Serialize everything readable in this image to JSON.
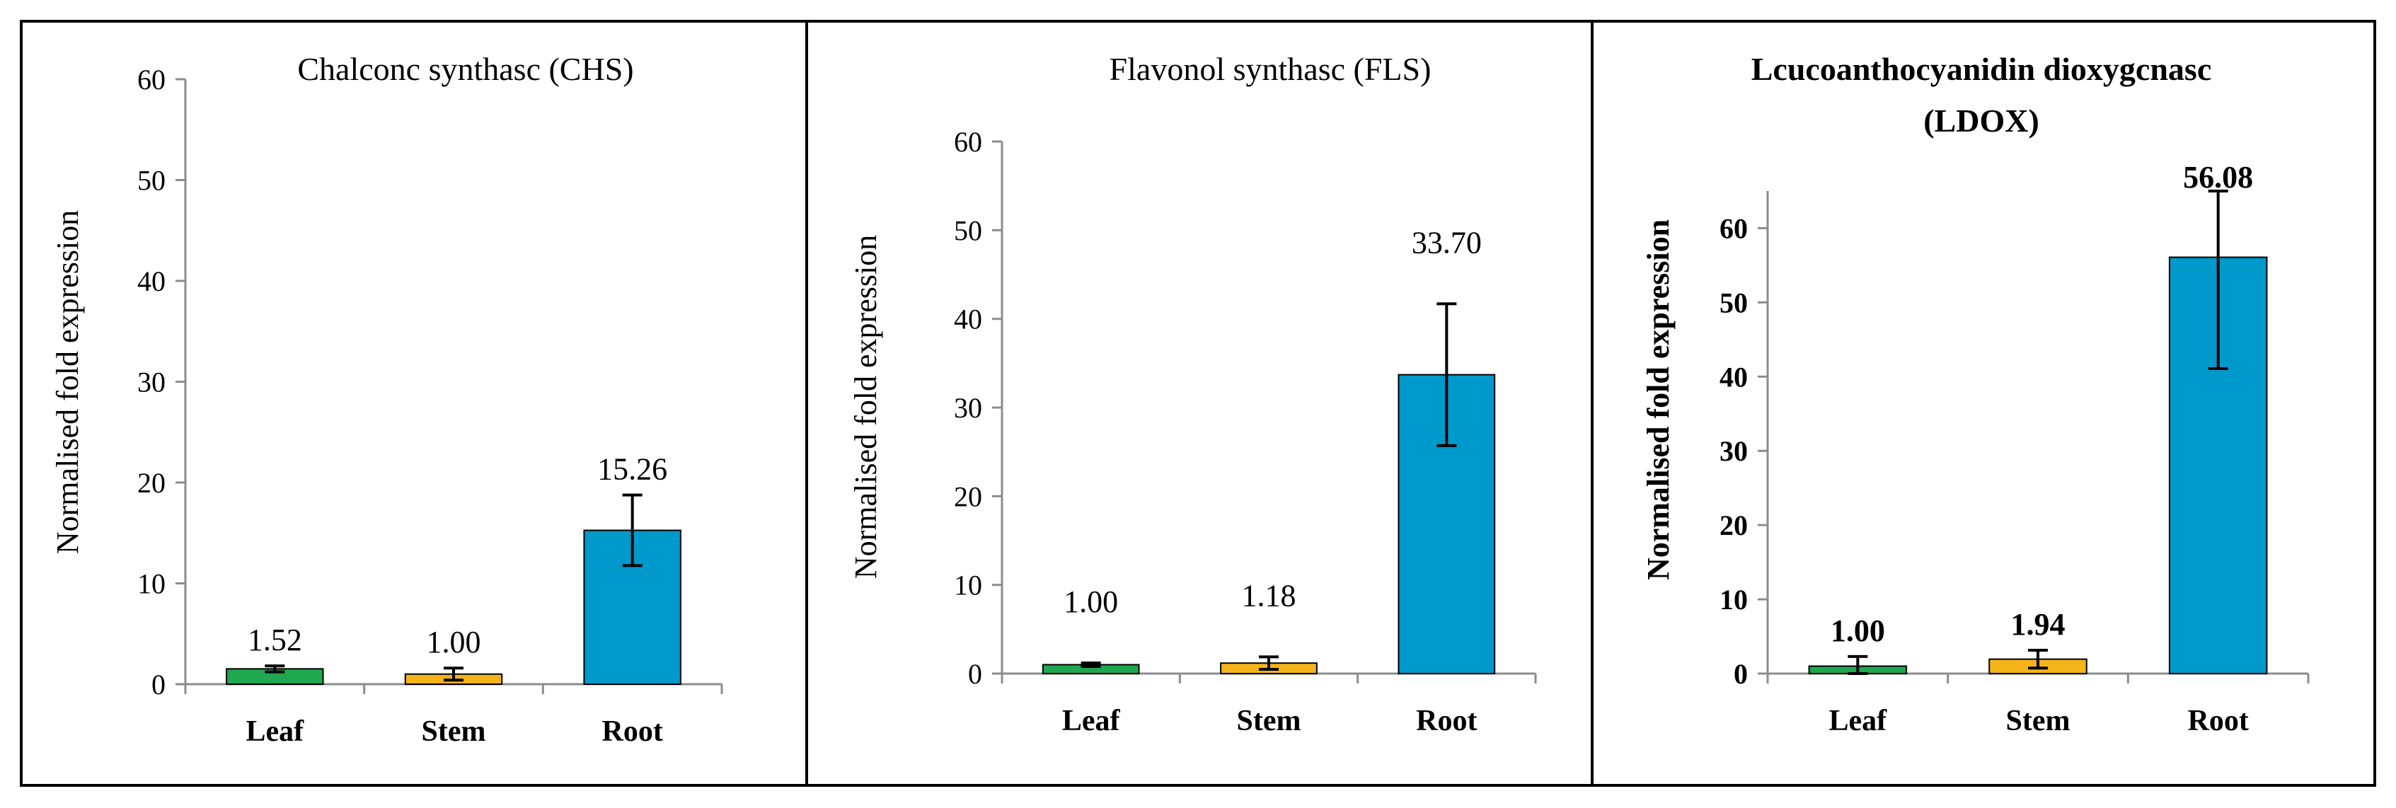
{
  "colors": {
    "leaf": "#1fa84f",
    "stem": "#f4b41a",
    "root": "#0099cc",
    "border": "#000000",
    "axis": "#8c8c8c"
  },
  "chart_data": [
    {
      "type": "bar",
      "title": "Chalconc synthasc (CHS)",
      "ylabel": "Normalised fold expression",
      "xlabel": "",
      "categories": [
        "Leaf",
        "Stem",
        "Root"
      ],
      "values": [
        1.52,
        1.0,
        15.26
      ],
      "value_labels": [
        "1.52",
        "1.00",
        "15.26"
      ],
      "error": [
        0.3,
        0.6,
        3.5
      ],
      "ylim": [
        0,
        60
      ],
      "yticks": [
        0,
        10,
        20,
        30,
        40,
        50,
        60
      ],
      "grid": false,
      "legend": "none"
    },
    {
      "type": "bar",
      "title": "Flavonol synthasc (FLS)",
      "ylabel": "Normalised fold expression",
      "xlabel": "",
      "categories": [
        "Leaf",
        "Stem",
        "Root"
      ],
      "values": [
        1.0,
        1.18,
        33.7
      ],
      "value_labels": [
        "1.00",
        "1.18",
        "33.70"
      ],
      "error": [
        0.2,
        0.7,
        8.0
      ],
      "ylim": [
        0,
        60
      ],
      "yticks": [
        0,
        10,
        20,
        30,
        40,
        50,
        60
      ],
      "grid": false,
      "legend": "none"
    },
    {
      "type": "bar",
      "title": "Lcucoanthocyanidin dioxygcnasc (LDOX)",
      "title_lines": [
        "Lcucoanthocyanidin dioxygcnasc",
        "(LDOX)"
      ],
      "ylabel": "Normalised fold expression",
      "xlabel": "",
      "categories": [
        "Leaf",
        "Stem",
        "Root"
      ],
      "values": [
        1.0,
        1.94,
        56.08
      ],
      "value_labels": [
        "1.00",
        "1.94",
        "56.08"
      ],
      "error": [
        1.3,
        1.2,
        15.0
      ],
      "ylim": [
        0,
        65
      ],
      "yticks": [
        0,
        10,
        20,
        30,
        40,
        50,
        60
      ],
      "grid": false,
      "legend": "none"
    }
  ]
}
